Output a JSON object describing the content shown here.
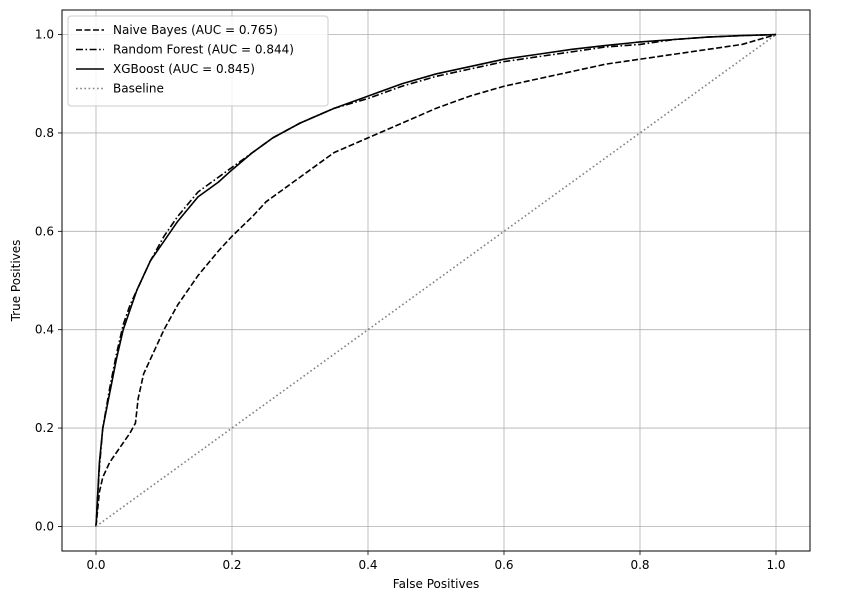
{
  "chart_data": {
    "type": "line",
    "title": "",
    "xlabel": "False Positives",
    "ylabel": "True Positives",
    "xlim": [
      -0.05,
      1.05
    ],
    "ylim": [
      -0.05,
      1.05
    ],
    "xticks": [
      0.0,
      0.2,
      0.4,
      0.6,
      0.8,
      1.0
    ],
    "yticks": [
      0.0,
      0.2,
      0.4,
      0.6,
      0.8,
      1.0
    ],
    "xtick_labels": [
      "0.0",
      "0.2",
      "0.4",
      "0.6",
      "0.8",
      "1.0"
    ],
    "ytick_labels": [
      "0.0",
      "0.2",
      "0.4",
      "0.6",
      "0.8",
      "1.0"
    ],
    "grid": true,
    "legend_position": "top-left",
    "series": [
      {
        "name": "Naive Bayes (AUC = 0.765)",
        "style": "dashed",
        "color": "#000000",
        "x": [
          0,
          0.005,
          0.01,
          0.02,
          0.03,
          0.04,
          0.05,
          0.058,
          0.062,
          0.07,
          0.08,
          0.09,
          0.1,
          0.12,
          0.15,
          0.18,
          0.2,
          0.23,
          0.25,
          0.28,
          0.3,
          0.33,
          0.35,
          0.4,
          0.45,
          0.5,
          0.55,
          0.6,
          0.65,
          0.7,
          0.75,
          0.8,
          0.85,
          0.9,
          0.95,
          1.0
        ],
        "y": [
          0,
          0.07,
          0.1,
          0.13,
          0.15,
          0.17,
          0.19,
          0.21,
          0.26,
          0.31,
          0.34,
          0.37,
          0.4,
          0.45,
          0.51,
          0.56,
          0.59,
          0.63,
          0.66,
          0.69,
          0.71,
          0.74,
          0.76,
          0.79,
          0.82,
          0.85,
          0.875,
          0.895,
          0.91,
          0.925,
          0.94,
          0.95,
          0.96,
          0.97,
          0.98,
          1.0
        ]
      },
      {
        "name": "Random Forest (AUC = 0.844)",
        "style": "dashdot",
        "color": "#000000",
        "x": [
          0,
          0.005,
          0.01,
          0.02,
          0.03,
          0.04,
          0.05,
          0.06,
          0.08,
          0.1,
          0.12,
          0.15,
          0.18,
          0.2,
          0.23,
          0.26,
          0.3,
          0.35,
          0.4,
          0.45,
          0.5,
          0.55,
          0.6,
          0.65,
          0.7,
          0.75,
          0.8,
          0.85,
          0.9,
          0.95,
          1.0
        ],
        "y": [
          0,
          0.12,
          0.2,
          0.28,
          0.35,
          0.41,
          0.45,
          0.48,
          0.54,
          0.59,
          0.63,
          0.68,
          0.71,
          0.73,
          0.76,
          0.79,
          0.82,
          0.85,
          0.87,
          0.895,
          0.915,
          0.93,
          0.945,
          0.955,
          0.965,
          0.975,
          0.98,
          0.99,
          0.995,
          0.998,
          1.0
        ]
      },
      {
        "name": "XGBoost (AUC = 0.845)",
        "style": "solid",
        "color": "#000000",
        "x": [
          0,
          0.005,
          0.01,
          0.02,
          0.03,
          0.04,
          0.05,
          0.06,
          0.08,
          0.1,
          0.12,
          0.15,
          0.18,
          0.2,
          0.23,
          0.26,
          0.3,
          0.35,
          0.4,
          0.45,
          0.5,
          0.55,
          0.6,
          0.65,
          0.7,
          0.75,
          0.8,
          0.85,
          0.9,
          0.95,
          1.0
        ],
        "y": [
          0,
          0.13,
          0.2,
          0.27,
          0.34,
          0.4,
          0.44,
          0.48,
          0.54,
          0.58,
          0.62,
          0.67,
          0.7,
          0.725,
          0.76,
          0.79,
          0.82,
          0.85,
          0.875,
          0.9,
          0.92,
          0.935,
          0.95,
          0.96,
          0.97,
          0.978,
          0.985,
          0.99,
          0.995,
          0.998,
          1.0
        ]
      },
      {
        "name": "Baseline",
        "style": "dotted",
        "color": "#808080",
        "x": [
          0,
          1
        ],
        "y": [
          0,
          1
        ]
      }
    ]
  }
}
